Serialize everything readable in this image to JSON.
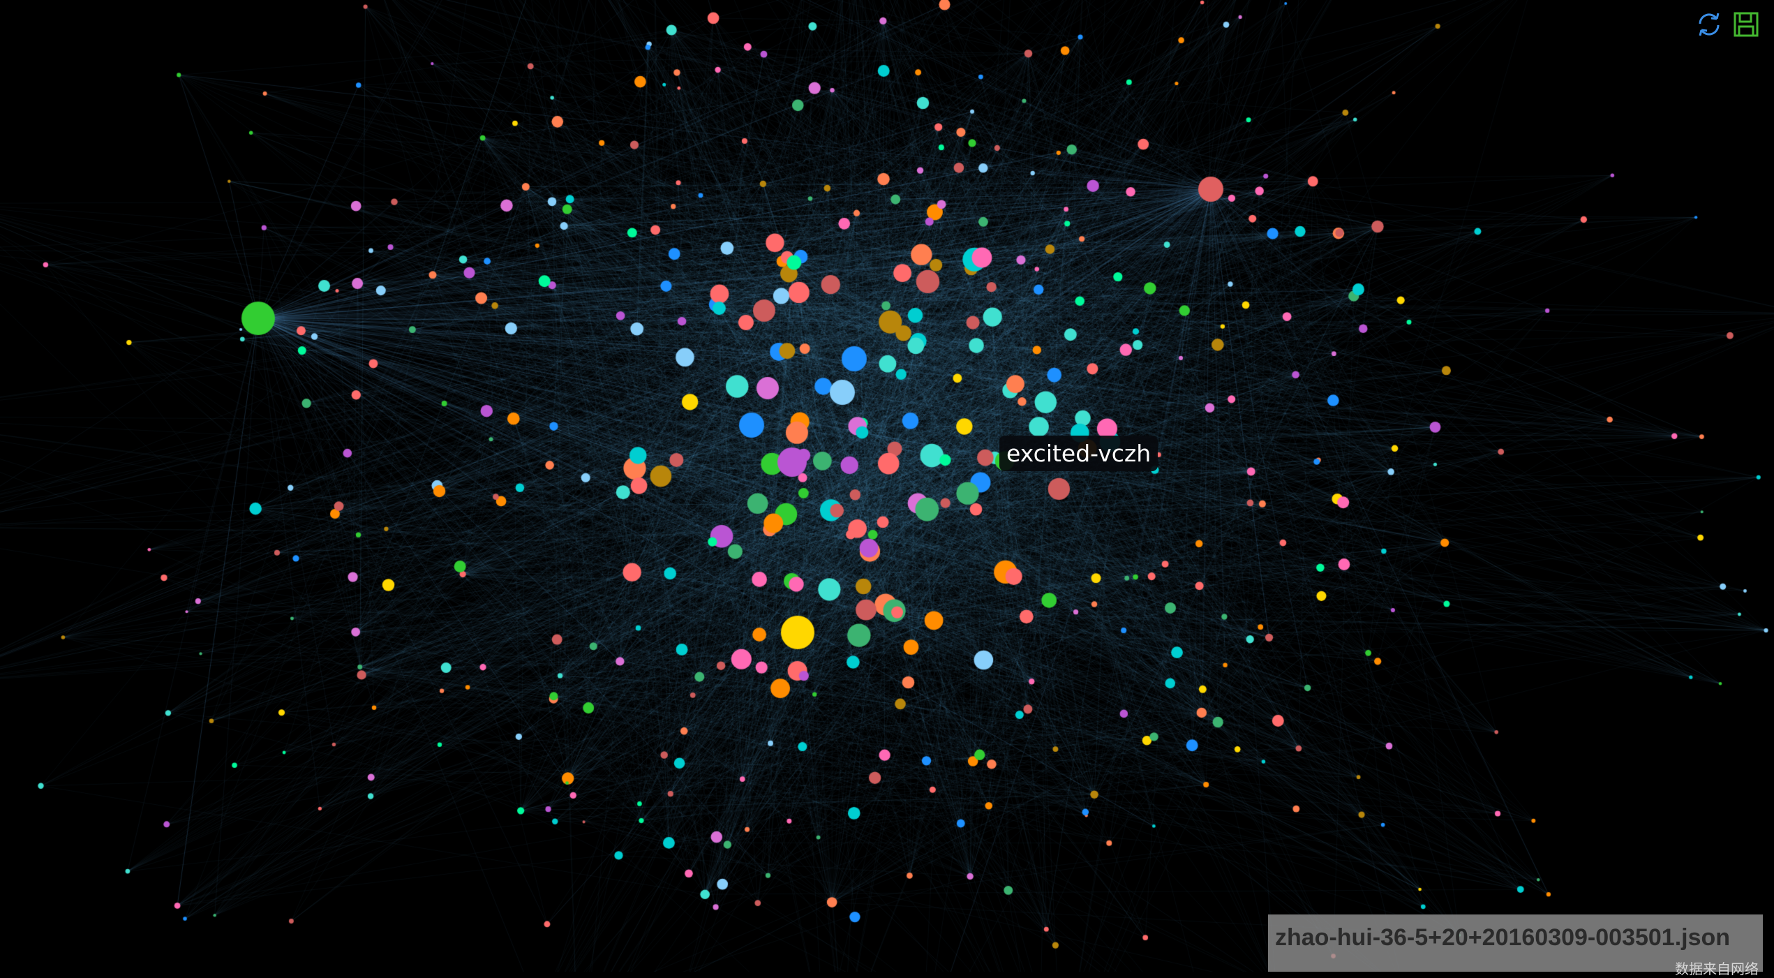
{
  "toolbar": {
    "refresh_icon": "refresh-icon",
    "save_icon": "save-image-icon",
    "refresh_color": "#3a8ee6",
    "save_color": "#44b830"
  },
  "tooltip": {
    "text": "excited-vczh"
  },
  "footer": {
    "title": "zhao-hui-36-5+20+20160309-003501.json",
    "source": "数据来自网络"
  },
  "chart_data": {
    "type": "network",
    "layout": "force",
    "background": "#000000",
    "edge_color": "#5fa9e6",
    "node_palette": [
      "#ff6b6b",
      "#ffd700",
      "#32cd32",
      "#1e90ff",
      "#da70d6",
      "#00fa9a",
      "#40e0d0",
      "#ff7f50",
      "#ba55d3",
      "#ff69b4",
      "#87cefa",
      "#ff8c00",
      "#3cb371",
      "#cd5c5c",
      "#00ced1",
      "#b8860b"
    ],
    "highlighted_node": "excited-vczh",
    "hub_colors": [
      "#32cd32",
      "#e06060"
    ]
  }
}
